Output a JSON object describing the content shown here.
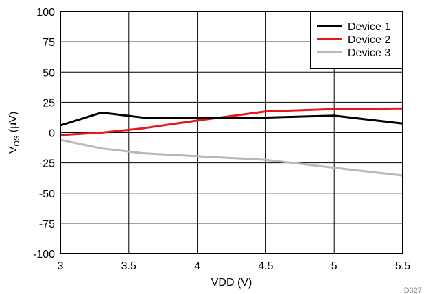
{
  "chart_data": {
    "type": "line",
    "title": "",
    "xlabel": "VDD (V)",
    "ylabel": "V",
    "ylabel_sub": "OS",
    "ylabel_unit": " (µV)",
    "xlim": [
      3,
      5.5
    ],
    "ylim": [
      -100,
      100
    ],
    "x_ticks": [
      3,
      3.5,
      4,
      4.5,
      5,
      5.5
    ],
    "x_tick_labels": [
      "3",
      "3.5",
      "4",
      "4.5",
      "5",
      "5.5"
    ],
    "y_ticks": [
      100,
      75,
      50,
      25,
      0,
      -25,
      -50,
      -75,
      -100
    ],
    "y_tick_labels": [
      "100",
      "75",
      "50",
      "25",
      "0",
      "-25",
      "-50",
      "-75",
      "-100"
    ],
    "grid": true,
    "legend_position": "top-right",
    "figure_id": "D027",
    "series": [
      {
        "name": "Device 1",
        "color": "#000000",
        "x": [
          3,
          3.3,
          3.6,
          4.5,
          5,
          5.5
        ],
        "y": [
          6,
          16.5,
          12.5,
          12.5,
          14,
          7.5
        ]
      },
      {
        "name": "Device 2",
        "color": "#e8161b",
        "x": [
          3,
          3.3,
          3.6,
          4,
          4.5,
          5,
          5.5
        ],
        "y": [
          -2,
          0,
          3.5,
          10,
          17.5,
          19.5,
          20
        ]
      },
      {
        "name": "Device 3",
        "color": "#b8b8b8",
        "x": [
          3,
          3.3,
          3.6,
          4,
          4.5,
          5,
          5.5
        ],
        "y": [
          -6,
          -13,
          -17,
          -19.5,
          -22.5,
          -29,
          -35.5
        ]
      }
    ]
  }
}
